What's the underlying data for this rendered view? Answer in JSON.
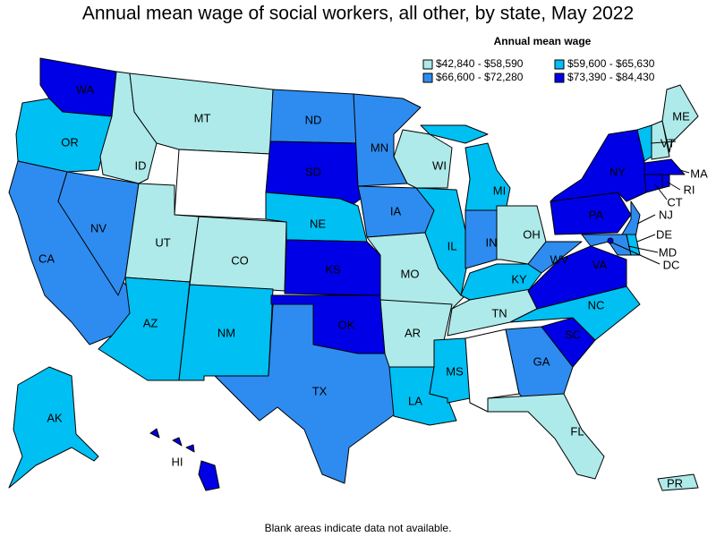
{
  "title": "Annual mean wage of social workers, all other, by state, May 2022",
  "legend": {
    "title": "Annual mean wage",
    "items": [
      {
        "label": "$42,840 - $58,590",
        "color": "#aeeaea"
      },
      {
        "label": "$59,600 - $65,630",
        "color": "#00bff3"
      },
      {
        "label": "$66,600 - $72,280",
        "color": "#2e8cf0"
      },
      {
        "label": "$73,390 - $84,430",
        "color": "#0000e6"
      }
    ]
  },
  "states": [
    {
      "label": "WA",
      "color": "#0000e6"
    },
    {
      "label": "OR",
      "color": "#00bff3"
    },
    {
      "label": "CA",
      "color": "#2e8cf0"
    },
    {
      "label": "NV",
      "color": "#2e8cf0"
    },
    {
      "label": "ID",
      "color": "#aeeaea"
    },
    {
      "label": "MT",
      "color": "#aeeaea"
    },
    {
      "color": "#ffffff"
    },
    {
      "label": "UT",
      "color": "#aeeaea"
    },
    {
      "label": "CO",
      "color": "#aeeaea"
    },
    {
      "label": "AZ",
      "color": "#00bff3"
    },
    {
      "label": "NM",
      "color": "#00bff3"
    },
    {
      "label": "ND",
      "color": "#2e8cf0"
    },
    {
      "label": "SD",
      "color": "#0000e6"
    },
    {
      "label": "NE",
      "color": "#00bff3"
    },
    {
      "label": "KS",
      "color": "#0000e6"
    },
    {
      "label": "OK",
      "color": "#0000e6"
    },
    {
      "label": "TX",
      "color": "#2e8cf0"
    },
    {
      "label": "MN",
      "color": "#2e8cf0"
    },
    {
      "label": "IA",
      "color": "#2e8cf0"
    },
    {
      "label": "MO",
      "color": "#aeeaea"
    },
    {
      "label": "AR",
      "color": "#aeeaea"
    },
    {
      "label": "LA",
      "color": "#00bff3"
    },
    {
      "label": "WI",
      "color": "#aeeaea"
    },
    {
      "label": "IL",
      "color": "#00bff3"
    },
    {
      "label": "MI",
      "color": "#00bff3"
    },
    {
      "label": "IN",
      "color": "#2e8cf0"
    },
    {
      "label": "OH",
      "color": "#aeeaea"
    },
    {
      "label": "KY",
      "color": "#00bff3"
    },
    {
      "label": "TN",
      "color": "#aeeaea"
    },
    {
      "label": "MS",
      "color": "#00bff3"
    },
    {
      "color": "#ffffff"
    },
    {
      "label": "GA",
      "color": "#2e8cf0"
    },
    {
      "label": "FL",
      "color": "#aeeaea"
    },
    {
      "label": "SC",
      "color": "#0000e6"
    },
    {
      "label": "NC",
      "color": "#00bff3"
    },
    {
      "label": "VA",
      "color": "#0000e6"
    },
    {
      "label": "WV",
      "color": "#2e8cf0"
    },
    {
      "label": "PA",
      "color": "#0000e6"
    },
    {
      "label": "NY",
      "color": "#0000e6"
    },
    {
      "label": "NJ",
      "color": "#2e8cf0"
    },
    {
      "label": "MD",
      "color": "#2e8cf0"
    },
    {
      "label": "DE",
      "color": "#00bff3"
    },
    {
      "label": "DC",
      "color": "#0000e6"
    },
    {
      "label": "VT",
      "color": "#00bff3"
    },
    {
      "color": "#aeeaea"
    },
    {
      "label": "ME",
      "color": "#aeeaea"
    },
    {
      "label": "MA",
      "color": "#0000e6"
    },
    {
      "label": "CT",
      "color": "#0000e6"
    },
    {
      "label": "RI",
      "color": "#0000e6"
    },
    {
      "label": "AK",
      "color": "#00bff3"
    },
    {
      "label": "HI",
      "color": "#0000e6"
    },
    {
      "label": "PR",
      "color": "#aeeaea"
    }
  ],
  "note": "Blank areas indicate data not available."
}
